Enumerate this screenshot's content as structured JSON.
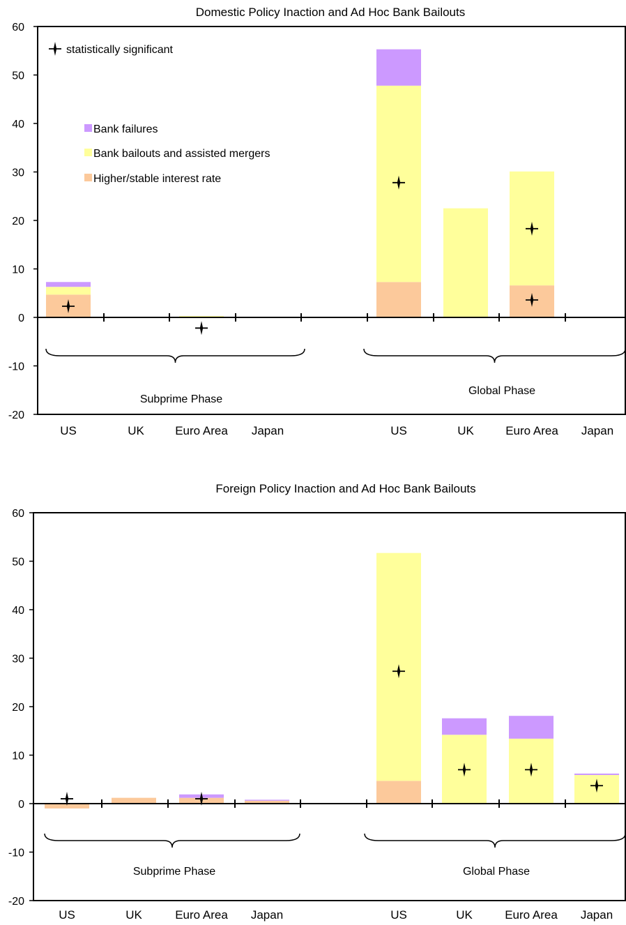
{
  "chart_data": [
    {
      "type": "bar",
      "stacked": true,
      "title": "Domestic Policy Inaction and Ad Hoc Bank Bailouts",
      "ylim": [
        -20,
        60
      ],
      "yticks": [
        -20,
        -10,
        0,
        10,
        20,
        30,
        40,
        50,
        60
      ],
      "categories": [
        "US",
        "UK",
        "Euro Area",
        "Japan",
        "US",
        "UK",
        "Euro Area",
        "Japan"
      ],
      "groups": [
        "Subprime Phase",
        "Global Phase"
      ],
      "series": [
        {
          "name": "Higher/stable interest rate",
          "color": "#fcc99b",
          "values": [
            4.7,
            0,
            0.1,
            0,
            7.3,
            0,
            6.6,
            0
          ]
        },
        {
          "name": "Bank bailouts and assisted mergers",
          "color": "#ffff9b",
          "values": [
            1.6,
            0.1,
            0.2,
            0,
            40.5,
            22.5,
            23.5,
            0
          ]
        },
        {
          "name": "Bank failures",
          "color": "#cc99ff",
          "values": [
            1.0,
            0,
            0,
            0,
            7.5,
            0,
            0,
            0
          ]
        }
      ],
      "significant": [
        {
          "category_index": 0,
          "value": 2.3
        },
        {
          "category_index": 2,
          "value": -2.2
        },
        {
          "category_index": 4,
          "value": 27.8
        },
        {
          "category_index": 6,
          "value": 18.3
        },
        {
          "category_index": 6,
          "value": 3.6
        }
      ],
      "marker_label": "statistically significant",
      "legend_position": "top-left",
      "grid": false
    },
    {
      "type": "bar",
      "stacked": true,
      "title": "Foreign Policy Inaction and Ad Hoc Bank Bailouts",
      "ylim": [
        -20,
        60
      ],
      "yticks": [
        -20,
        -10,
        0,
        10,
        20,
        30,
        40,
        50,
        60
      ],
      "categories": [
        "US",
        "UK",
        "Euro Area",
        "Japan",
        "US",
        "UK",
        "Euro Area",
        "Japan"
      ],
      "groups": [
        "Subprime Phase",
        "Global Phase"
      ],
      "series": [
        {
          "name": "Higher/stable interest rate",
          "color": "#fcc99b",
          "values": [
            -1.0,
            1.2,
            1.2,
            0.6,
            4.7,
            0,
            0,
            0
          ]
        },
        {
          "name": "Bank bailouts and assisted mergers",
          "color": "#ffff9b",
          "values": [
            0,
            0,
            0,
            0,
            47.0,
            14.2,
            13.4,
            5.9
          ]
        },
        {
          "name": "Bank failures",
          "color": "#cc99ff",
          "values": [
            0,
            0,
            0.7,
            0.2,
            0,
            3.4,
            4.7,
            0.3
          ]
        }
      ],
      "significant": [
        {
          "category_index": 0,
          "value": 1.0
        },
        {
          "category_index": 2,
          "value": 1.0
        },
        {
          "category_index": 4,
          "value": 27.3
        },
        {
          "category_index": 5,
          "value": 7.0
        },
        {
          "category_index": 6,
          "value": 7.0
        },
        {
          "category_index": 7,
          "value": 3.7
        }
      ],
      "grid": false
    }
  ]
}
